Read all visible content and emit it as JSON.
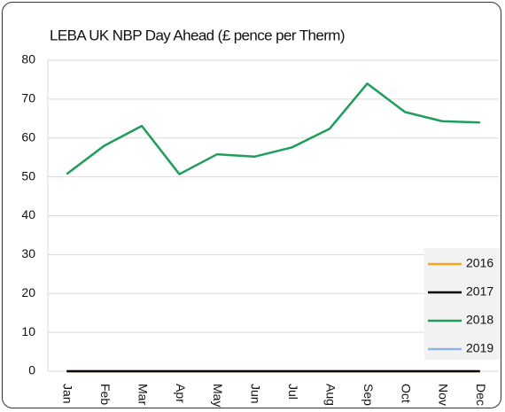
{
  "chart_data": {
    "type": "line",
    "title": "LEBA UK NBP Day Ahead (£ pence per Therm)",
    "categories": [
      "Jan",
      "Feb",
      "Mar",
      "Apr",
      "May",
      "Jun",
      "Jul",
      "Aug",
      "Sep",
      "Oct",
      "Nov",
      "Dec"
    ],
    "series": [
      {
        "name": "2016",
        "color": "#f5a623",
        "values": [
          0,
          0,
          0,
          0,
          0,
          0,
          0,
          0,
          0,
          0,
          0,
          0
        ]
      },
      {
        "name": "2017",
        "color": "#000000",
        "values": [
          0,
          0,
          0,
          0,
          0,
          0,
          0,
          0,
          0,
          0,
          0,
          0
        ]
      },
      {
        "name": "2018",
        "color": "#1e9e5a",
        "values": [
          50.7,
          58,
          63.1,
          50.7,
          55.8,
          55.2,
          57.6,
          62.4,
          74,
          66.7,
          64.3,
          64
        ]
      },
      {
        "name": "2019",
        "color": "#8fb4e8",
        "values": [
          null,
          null,
          null,
          null,
          null,
          null,
          null,
          null,
          null,
          null,
          null,
          null
        ]
      }
    ],
    "ylim": [
      0,
      80
    ],
    "yticks": [
      0,
      10,
      20,
      30,
      40,
      50,
      60,
      70,
      80
    ],
    "grid": true,
    "legend": "lower right"
  }
}
